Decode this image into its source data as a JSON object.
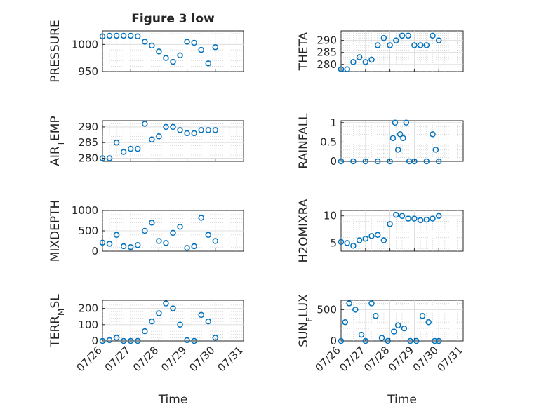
{
  "figure": {
    "background": "#ffffff",
    "marker_color": "#0072bd",
    "axis_color": "#262626",
    "grid": true,
    "grid_minor": true
  },
  "chart_data": [
    {
      "type": "scatter",
      "title": "Figure 3 low",
      "ylabel": "PRESSURE",
      "xlabel": "",
      "xlim": [
        "07/26",
        "07/31"
      ],
      "ylim": [
        950,
        1025
      ],
      "yticks": [
        950,
        1000
      ],
      "yticklabels": [
        "950",
        "1000"
      ],
      "show_xticklabels": false,
      "x": [
        "07/26 00:00",
        "07/26 06:00",
        "07/26 12:00",
        "07/26 18:00",
        "07/27 00:00",
        "07/27 06:00",
        "07/27 12:00",
        "07/27 18:00",
        "07/28 00:00",
        "07/28 06:00",
        "07/28 12:00",
        "07/28 18:00",
        "07/29 00:00",
        "07/29 06:00",
        "07/29 12:00",
        "07/29 18:00",
        "07/30 00:00"
      ],
      "y": [
        1015,
        1016,
        1016,
        1016,
        1016,
        1015,
        1005,
        998,
        987,
        975,
        968,
        980,
        1005,
        1003,
        990,
        965,
        995
      ]
    },
    {
      "type": "scatter",
      "title": "",
      "ylabel": "THETA",
      "xlabel": "",
      "xlim": [
        "07/26",
        "07/31"
      ],
      "ylim": [
        277,
        294
      ],
      "yticks": [
        280,
        285,
        290
      ],
      "yticklabels": [
        "280",
        "285",
        "290"
      ],
      "show_xticklabels": false,
      "x": [
        "07/26 00:00",
        "07/26 06:00",
        "07/26 12:00",
        "07/26 18:00",
        "07/27 00:00",
        "07/27 06:00",
        "07/27 12:00",
        "07/27 18:00",
        "07/28 00:00",
        "07/28 06:00",
        "07/28 12:00",
        "07/28 18:00",
        "07/29 00:00",
        "07/29 06:00",
        "07/29 12:00",
        "07/29 18:00",
        "07/30 00:00"
      ],
      "y": [
        278,
        278,
        281,
        283,
        281,
        282,
        288,
        291,
        288,
        290,
        292,
        292,
        288,
        288,
        288,
        292,
        290
      ]
    },
    {
      "type": "scatter",
      "title": "",
      "ylabel": "AIR_TEMP",
      "xlabel": "",
      "xlim": [
        "07/26",
        "07/31"
      ],
      "ylim": [
        279,
        292
      ],
      "yticks": [
        280,
        285,
        290
      ],
      "yticklabels": [
        "280",
        "285",
        "290"
      ],
      "show_xticklabels": false,
      "x": [
        "07/26 00:00",
        "07/26 06:00",
        "07/26 12:00",
        "07/26 18:00",
        "07/27 00:00",
        "07/27 06:00",
        "07/27 12:00",
        "07/27 18:00",
        "07/28 00:00",
        "07/28 06:00",
        "07/28 12:00",
        "07/28 18:00",
        "07/29 00:00",
        "07/29 06:00",
        "07/29 12:00",
        "07/29 18:00",
        "07/30 00:00"
      ],
      "y": [
        280,
        280,
        285,
        282,
        283,
        283,
        291,
        286,
        287,
        290,
        290,
        289,
        288,
        288,
        289,
        289,
        289
      ]
    },
    {
      "type": "scatter",
      "title": "",
      "ylabel": "RAINFALL",
      "xlabel": "",
      "xlim": [
        "07/26",
        "07/31"
      ],
      "ylim": [
        0,
        1.05
      ],
      "yticks": [
        0,
        0.5,
        1
      ],
      "yticklabels": [
        "0",
        "0.5",
        "1"
      ],
      "show_xticklabels": false,
      "x": [
        "07/26 00:00",
        "07/26 12:00",
        "07/27 00:00",
        "07/27 12:00",
        "07/28 00:00",
        "07/28 03:00",
        "07/28 05:00",
        "07/28 08:00",
        "07/28 10:00",
        "07/28 13:00",
        "07/28 16:00",
        "07/28 19:00",
        "07/29 00:00",
        "07/29 12:00",
        "07/29 18:00",
        "07/29 21:00",
        "07/30 00:00"
      ],
      "y": [
        0,
        0,
        0,
        0,
        0,
        0.6,
        1.0,
        0.3,
        0.7,
        0.6,
        1.0,
        0,
        0,
        0,
        0.7,
        0.3,
        0
      ]
    },
    {
      "type": "scatter",
      "title": "",
      "ylabel": "MIXDEPTH",
      "xlabel": "",
      "xlim": [
        "07/26",
        "07/31"
      ],
      "ylim": [
        0,
        1000
      ],
      "yticks": [
        0,
        500,
        1000
      ],
      "yticklabels": [
        "0",
        "500",
        "1000"
      ],
      "show_xticklabels": false,
      "x": [
        "07/26 00:00",
        "07/26 06:00",
        "07/26 12:00",
        "07/26 18:00",
        "07/27 00:00",
        "07/27 06:00",
        "07/27 12:00",
        "07/27 18:00",
        "07/28 00:00",
        "07/28 06:00",
        "07/28 12:00",
        "07/28 18:00",
        "07/29 00:00",
        "07/29 06:00",
        "07/29 12:00",
        "07/29 18:00",
        "07/30 00:00"
      ],
      "y": [
        210,
        180,
        400,
        120,
        100,
        150,
        500,
        700,
        250,
        200,
        450,
        600,
        80,
        120,
        820,
        400,
        250
      ]
    },
    {
      "type": "scatter",
      "title": "",
      "ylabel": "H2OMIXRA",
      "xlabel": "",
      "xlim": [
        "07/26",
        "07/31"
      ],
      "ylim": [
        3.5,
        11
      ],
      "yticks": [
        5,
        10
      ],
      "yticklabels": [
        "5",
        "10"
      ],
      "show_xticklabels": false,
      "x": [
        "07/26 00:00",
        "07/26 06:00",
        "07/26 12:00",
        "07/26 18:00",
        "07/27 00:00",
        "07/27 06:00",
        "07/27 12:00",
        "07/27 18:00",
        "07/28 00:00",
        "07/28 06:00",
        "07/28 12:00",
        "07/28 18:00",
        "07/29 00:00",
        "07/29 06:00",
        "07/29 12:00",
        "07/29 18:00",
        "07/30 00:00"
      ],
      "y": [
        5.2,
        5.0,
        4.5,
        5.5,
        5.8,
        6.3,
        6.5,
        5.5,
        8.5,
        10.2,
        10.0,
        9.5,
        9.5,
        9.2,
        9.3,
        9.5,
        10.0
      ]
    },
    {
      "type": "scatter",
      "title": "",
      "ylabel": "TERR_MSL",
      "xlabel": "Time",
      "xlim": [
        "07/26",
        "07/31"
      ],
      "ylim": [
        0,
        250
      ],
      "yticks": [
        0,
        100,
        200
      ],
      "yticklabels": [
        "0",
        "100",
        "200"
      ],
      "xticks": [
        "07/26",
        "07/27",
        "07/28",
        "07/29",
        "07/30",
        "07/31"
      ],
      "show_xticklabels": true,
      "x": [
        "07/26 00:00",
        "07/26 06:00",
        "07/26 12:00",
        "07/26 18:00",
        "07/27 00:00",
        "07/27 06:00",
        "07/27 12:00",
        "07/27 18:00",
        "07/28 00:00",
        "07/28 06:00",
        "07/28 12:00",
        "07/28 18:00",
        "07/29 00:00",
        "07/29 06:00",
        "07/29 12:00",
        "07/29 18:00",
        "07/30 00:00"
      ],
      "y": [
        0,
        5,
        20,
        0,
        0,
        0,
        60,
        120,
        170,
        230,
        200,
        100,
        5,
        0,
        160,
        120,
        20
      ]
    },
    {
      "type": "scatter",
      "title": "",
      "ylabel": "SUN_FLUX",
      "xlabel": "Time",
      "xlim": [
        "07/26",
        "07/31"
      ],
      "ylim": [
        0,
        650
      ],
      "yticks": [
        0,
        500
      ],
      "yticklabels": [
        "0",
        "500"
      ],
      "xticks": [
        "07/26",
        "07/27",
        "07/28",
        "07/29",
        "07/30",
        "07/31"
      ],
      "show_xticklabels": true,
      "x": [
        "07/26 00:00",
        "07/26 04:00",
        "07/26 08:00",
        "07/26 14:00",
        "07/26 20:00",
        "07/27 00:00",
        "07/27 06:00",
        "07/27 10:00",
        "07/27 16:00",
        "07/27 22:00",
        "07/28 04:00",
        "07/28 08:00",
        "07/28 14:00",
        "07/28 20:00",
        "07/29 02:00",
        "07/29 08:00",
        "07/29 14:00",
        "07/29 20:00",
        "07/30 00:00"
      ],
      "y": [
        0,
        300,
        600,
        500,
        100,
        0,
        600,
        400,
        50,
        0,
        150,
        250,
        200,
        0,
        0,
        400,
        300,
        0,
        0
      ]
    }
  ]
}
